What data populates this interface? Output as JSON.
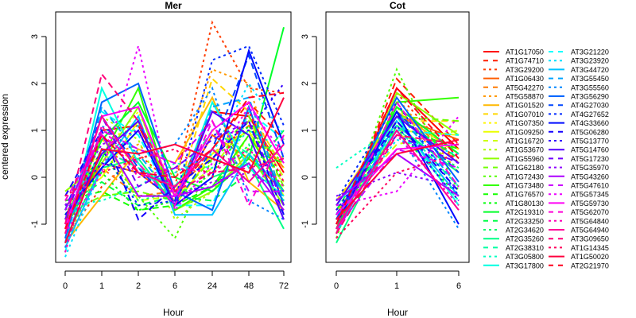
{
  "chart_data": [
    {
      "type": "line",
      "title": "Mer",
      "xlabel": "Hour",
      "ylabel": "centered expression",
      "categories": [
        "0",
        "1",
        "2",
        "6",
        "24",
        "48",
        "72"
      ],
      "yticks": [
        -1,
        0,
        1,
        2,
        3
      ],
      "ylim": [
        -1.85,
        3.55
      ],
      "grid": false
    },
    {
      "type": "line",
      "title": "Cot",
      "xlabel": "Hour",
      "categories": [
        "0",
        "1",
        "6"
      ],
      "yticks": [
        -1,
        0,
        1,
        2,
        3
      ],
      "ylim": [
        -1.85,
        3.55
      ],
      "grid": false
    }
  ],
  "legend_placement": "right",
  "series": [
    {
      "name": "AT1G17050",
      "mer": [
        -1.0,
        1.0,
        1.1,
        -0.4,
        1.4,
        1.3,
        0.1
      ],
      "cot": [
        -1.1,
        1.9,
        0.6
      ]
    },
    {
      "name": "AT1G74710",
      "mer": [
        -1.2,
        0.6,
        0.2,
        -0.3,
        0.6,
        1.6,
        0.8
      ],
      "cot": [
        -1.2,
        2.1,
        0.7
      ]
    },
    {
      "name": "AT3G29200",
      "mer": [
        -1.3,
        -0.2,
        0.5,
        -0.2,
        3.3,
        1.9,
        1.8
      ],
      "cot": [
        -1.0,
        1.8,
        0.3
      ]
    },
    {
      "name": "AT1G06430",
      "mer": [
        -1.0,
        0.3,
        0.1,
        -0.5,
        0.9,
        0.4,
        -0.3
      ],
      "cot": [
        -0.8,
        1.3,
        0.8
      ]
    },
    {
      "name": "AT5G42270",
      "mer": [
        -0.8,
        0.2,
        -0.4,
        -0.3,
        0.5,
        1.1,
        0.2
      ],
      "cot": [
        -0.9,
        1.5,
        0.3
      ]
    },
    {
      "name": "AT5G58870",
      "mer": [
        -1.5,
        0.4,
        0.7,
        0.0,
        2.3,
        2.0,
        -0.6
      ],
      "cot": [
        -1.0,
        1.7,
        0.1
      ]
    },
    {
      "name": "AT1G01520",
      "mer": [
        -1.4,
        -0.4,
        0.6,
        0.3,
        1.7,
        -0.1,
        -0.7
      ],
      "cot": [
        -0.6,
        1.4,
        0.5
      ]
    },
    {
      "name": "AT1G07010",
      "mer": [
        -1.1,
        0.8,
        0.3,
        -0.5,
        2.1,
        1.4,
        0.2
      ],
      "cot": [
        -0.5,
        1.2,
        1.2
      ]
    },
    {
      "name": "AT1G07350",
      "mer": [
        -0.9,
        0.5,
        1.4,
        -0.3,
        1.0,
        0.6,
        -0.1
      ],
      "cot": [
        -0.8,
        0.9,
        0.6
      ]
    },
    {
      "name": "AT1G09250",
      "mer": [
        -0.6,
        0.0,
        1.2,
        -0.6,
        0.5,
        1.0,
        -0.4
      ],
      "cot": [
        -0.9,
        1.0,
        0.9
      ]
    },
    {
      "name": "AT1G16720",
      "mer": [
        -1.0,
        0.9,
        -0.5,
        -0.4,
        0.2,
        1.2,
        0.0
      ],
      "cot": [
        -0.7,
        0.7,
        1.0
      ]
    },
    {
      "name": "AT1G53670",
      "mer": [
        -1.2,
        1.3,
        0.8,
        -0.9,
        -0.3,
        0.9,
        0.4
      ],
      "cot": [
        -1.0,
        1.5,
        0.1
      ]
    },
    {
      "name": "AT1G55960",
      "mer": [
        -0.3,
        0.3,
        1.5,
        -0.7,
        -0.3,
        0.5,
        -0.6
      ],
      "cot": [
        -1.2,
        1.8,
        0.9
      ]
    },
    {
      "name": "AT1G62180",
      "mer": [
        -0.8,
        -0.4,
        -0.3,
        -0.5,
        0.4,
        1.3,
        -0.2
      ],
      "cot": [
        -0.9,
        1.3,
        1.2
      ]
    },
    {
      "name": "AT1G72430",
      "mer": [
        -0.9,
        0.6,
        -0.4,
        -1.3,
        0.4,
        1.0,
        0.3
      ],
      "cot": [
        -1.3,
        2.3,
        -0.3
      ]
    },
    {
      "name": "AT1G73480",
      "mer": [
        -1.1,
        0.4,
        1.9,
        -0.7,
        -0.2,
        0.9,
        -0.3
      ],
      "cot": [
        -1.2,
        1.6,
        1.7
      ]
    },
    {
      "name": "AT1G76570",
      "mer": [
        -0.5,
        -0.3,
        -0.7,
        -0.6,
        -0.2,
        0.6,
        0.3
      ],
      "cot": [
        -0.8,
        1.1,
        0.6
      ]
    },
    {
      "name": "AT1G80130",
      "mer": [
        -0.7,
        0.1,
        -0.7,
        -0.5,
        0.1,
        1.1,
        -0.1
      ],
      "cot": [
        -1.0,
        1.0,
        -0.4
      ]
    },
    {
      "name": "AT2G19310",
      "mer": [
        -0.9,
        0.8,
        1.6,
        0.0,
        -0.3,
        0.4,
        3.2
      ],
      "cot": [
        -1.1,
        1.5,
        0.5
      ]
    },
    {
      "name": "AT2G33250",
      "mer": [
        -0.6,
        -0.1,
        -0.6,
        -0.4,
        -0.5,
        0.1,
        1.0
      ],
      "cot": [
        -0.7,
        1.3,
        0.4
      ]
    },
    {
      "name": "AT2G34620",
      "mer": [
        -0.8,
        0.5,
        -0.5,
        -0.3,
        -0.2,
        0.7,
        -0.8
      ],
      "cot": [
        -0.9,
        1.0,
        0.2
      ]
    },
    {
      "name": "AT2G35260",
      "mer": [
        -1.3,
        0.2,
        0.4,
        -0.6,
        0.0,
        0.3,
        -1.1
      ],
      "cot": [
        -1.4,
        1.1,
        0.1
      ]
    },
    {
      "name": "AT2G38310",
      "mer": [
        -1.0,
        0.6,
        0.2,
        -0.2,
        1.0,
        0.5,
        -0.5
      ],
      "cot": [
        -1.0,
        1.2,
        -0.2
      ]
    },
    {
      "name": "AT3G05800",
      "mer": [
        -0.6,
        -0.5,
        -0.2,
        0.3,
        0.2,
        1.0,
        0.6
      ],
      "cot": [
        0.2,
        1.1,
        -0.5
      ]
    },
    {
      "name": "AT3G17800",
      "mer": [
        -1.4,
        1.9,
        0.3,
        -0.6,
        1.6,
        0.2,
        -0.4
      ],
      "cot": [
        -0.9,
        1.3,
        -0.6
      ]
    },
    {
      "name": "AT3G21220",
      "mer": [
        -1.6,
        1.4,
        0.9,
        -0.6,
        -0.6,
        1.4,
        0.8
      ],
      "cot": [
        -0.6,
        1.0,
        0.9
      ]
    },
    {
      "name": "AT3G23920",
      "mer": [
        -1.7,
        0.2,
        1.1,
        0.1,
        0.5,
        2.0,
        0.9
      ],
      "cot": [
        -0.9,
        0.8,
        0.5
      ]
    },
    {
      "name": "AT3G44720",
      "mer": [
        -1.5,
        0.2,
        1.3,
        -0.8,
        -0.8,
        0.5,
        -0.3
      ],
      "cot": [
        -1.2,
        1.2,
        -0.4
      ]
    },
    {
      "name": "AT3G55450",
      "mer": [
        -1.4,
        1.5,
        0.5,
        -0.5,
        1.5,
        1.7,
        -0.5
      ],
      "cot": [
        -0.8,
        1.4,
        -0.2
      ]
    },
    {
      "name": "AT3G55560",
      "mer": [
        -1.5,
        1.1,
        0.5,
        0.7,
        1.9,
        -0.5,
        -0.9
      ],
      "cot": [
        -1.1,
        1.0,
        -1.1
      ]
    },
    {
      "name": "AT3G56290",
      "mer": [
        -1.3,
        1.6,
        2.0,
        -0.3,
        -0.7,
        1.5,
        -0.6
      ],
      "cot": [
        -0.9,
        1.7,
        -0.1
      ]
    },
    {
      "name": "AT4G27030",
      "mer": [
        -0.7,
        1.3,
        0.2,
        -0.6,
        0.6,
        2.6,
        0.4
      ],
      "cot": [
        -0.9,
        1.4,
        0.1
      ]
    },
    {
      "name": "AT4G27652",
      "mer": [
        -1.0,
        0.6,
        -0.6,
        -0.5,
        2.5,
        2.8,
        1.1
      ],
      "cot": [
        -0.5,
        1.6,
        -0.4
      ]
    },
    {
      "name": "AT4G33660",
      "mer": [
        -0.8,
        0.2,
        1.0,
        -0.6,
        0.0,
        2.7,
        0.7
      ],
      "cot": [
        -1.0,
        1.4,
        -1.0
      ]
    },
    {
      "name": "AT5G06280",
      "mer": [
        -0.4,
        1.0,
        -0.9,
        -0.2,
        0.4,
        1.2,
        -0.8
      ],
      "cot": [
        -0.8,
        1.2,
        -0.3
      ]
    },
    {
      "name": "AT5G13770",
      "mer": [
        -0.6,
        0.3,
        0.1,
        -0.5,
        0.9,
        1.0,
        2.0
      ],
      "cot": [
        -0.7,
        1.1,
        -0.5
      ]
    },
    {
      "name": "AT5G14760",
      "mer": [
        -1.0,
        0.5,
        1.2,
        -0.6,
        1.4,
        0.9,
        -0.9
      ],
      "cot": [
        -0.6,
        1.3,
        0.3
      ]
    },
    {
      "name": "AT5G17230",
      "mer": [
        -0.9,
        1.3,
        -0.2,
        0.2,
        0.8,
        1.2,
        -0.6
      ],
      "cot": [
        -0.8,
        0.9,
        0.3
      ]
    },
    {
      "name": "AT5G35970",
      "mer": [
        -0.6,
        0.7,
        1.0,
        -0.4,
        -0.1,
        0.1,
        -0.3
      ],
      "cot": [
        -0.4,
        0.1,
        -0.2
      ]
    },
    {
      "name": "AT5G43260",
      "mer": [
        -0.7,
        0.9,
        -0.4,
        -0.4,
        -0.2,
        0.3,
        -0.7
      ],
      "cot": [
        -0.5,
        0.5,
        -0.4
      ]
    },
    {
      "name": "AT5G47610",
      "mer": [
        -1.0,
        1.0,
        0.6,
        0.3,
        1.2,
        -0.3,
        -0.3
      ],
      "cot": [
        -1.1,
        0.6,
        0.2
      ]
    },
    {
      "name": "AT5G57345",
      "mer": [
        -1.2,
        0.1,
        2.8,
        -0.7,
        0.3,
        1.5,
        0.5
      ],
      "cot": [
        -0.6,
        -0.3,
        1.3
      ]
    },
    {
      "name": "AT5G59730",
      "mer": [
        -1.1,
        1.3,
        1.5,
        -0.4,
        1.0,
        1.6,
        0.3
      ],
      "cot": [
        -0.8,
        0.6,
        0.7
      ]
    },
    {
      "name": "AT5G62070",
      "mer": [
        -0.5,
        0.9,
        0.3,
        -0.6,
        1.2,
        -0.6,
        0.9
      ],
      "cot": [
        -1.2,
        1.6,
        -0.2
      ]
    },
    {
      "name": "AT5G64840",
      "mer": [
        -1.6,
        1.1,
        0.0,
        0.2,
        0.1,
        0.6,
        -0.2
      ],
      "cot": [
        -1.0,
        0.9,
        -0.6
      ]
    },
    {
      "name": "AT5G64940",
      "mer": [
        -1.2,
        1.3,
        0.1,
        -0.2,
        0.6,
        -0.1,
        0.7
      ],
      "cot": [
        -1.1,
        1.0,
        -0.7
      ]
    },
    {
      "name": "AT3G09650",
      "mer": [
        -1.0,
        2.2,
        1.2,
        -0.3,
        0.1,
        0.2,
        0.4
      ],
      "cot": [
        -1.2,
        0.9,
        0.7
      ]
    },
    {
      "name": "AT1G14345",
      "mer": [
        -0.4,
        0.1,
        0.4,
        0.6,
        0.0,
        1.4,
        -0.1
      ],
      "cot": [
        -1.3,
        0.1,
        0.5
      ]
    },
    {
      "name": "AT1G50020",
      "mer": [
        -1.4,
        0.6,
        0.5,
        0.7,
        0.4,
        0.1,
        1.7
      ],
      "cot": [
        -0.9,
        0.5,
        0.8
      ]
    },
    {
      "name": "AT2G21970",
      "mer": [
        -1.1,
        0.9,
        0.1,
        0.0,
        0.6,
        1.7,
        1.8
      ],
      "cot": [
        -1.0,
        1.9,
        0.4
      ]
    }
  ]
}
